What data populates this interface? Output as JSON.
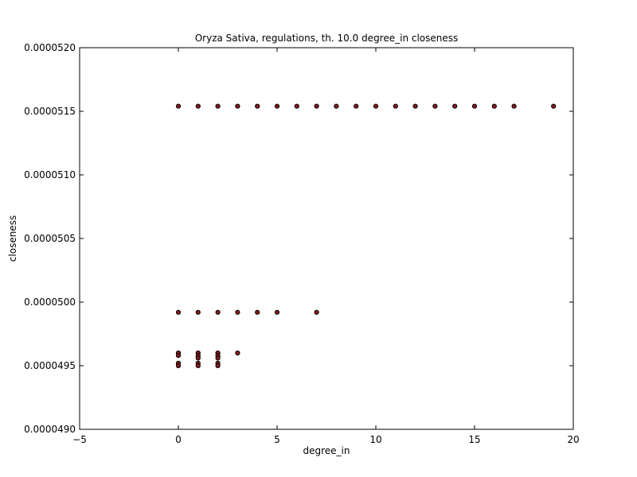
{
  "chart_data": {
    "type": "scatter",
    "title": "Oryza Sativa, regulations, th. 10.0 degree_in closeness",
    "xlabel": "degree_in",
    "ylabel": "closeness",
    "xlim": [
      -5,
      20
    ],
    "ylim": [
      4.9e-05,
      5.2e-05
    ],
    "xticks": [
      -5,
      0,
      5,
      10,
      15,
      20
    ],
    "xtick_labels": [
      "−5",
      "0",
      "5",
      "10",
      "15",
      "20"
    ],
    "yticks": [
      4.9e-05,
      4.95e-05,
      5e-05,
      5.05e-05,
      5.1e-05,
      5.15e-05,
      5.2e-05
    ],
    "ytick_labels": [
      "0.0000490",
      "0.0000495",
      "0.0000500",
      "0.0000505",
      "0.0000510",
      "0.0000515",
      "0.0000520"
    ],
    "grid": false,
    "legend": "none",
    "marker_fill": "#8b1a1a",
    "marker_edge": "#000000",
    "points": [
      {
        "x": 0,
        "y": 5.154e-05
      },
      {
        "x": 1,
        "y": 5.154e-05
      },
      {
        "x": 2,
        "y": 5.154e-05
      },
      {
        "x": 3,
        "y": 5.154e-05
      },
      {
        "x": 4,
        "y": 5.154e-05
      },
      {
        "x": 5,
        "y": 5.154e-05
      },
      {
        "x": 6,
        "y": 5.154e-05
      },
      {
        "x": 7,
        "y": 5.154e-05
      },
      {
        "x": 8,
        "y": 5.154e-05
      },
      {
        "x": 9,
        "y": 5.154e-05
      },
      {
        "x": 10,
        "y": 5.154e-05
      },
      {
        "x": 11,
        "y": 5.154e-05
      },
      {
        "x": 12,
        "y": 5.154e-05
      },
      {
        "x": 13,
        "y": 5.154e-05
      },
      {
        "x": 14,
        "y": 5.154e-05
      },
      {
        "x": 15,
        "y": 5.154e-05
      },
      {
        "x": 16,
        "y": 5.154e-05
      },
      {
        "x": 17,
        "y": 5.154e-05
      },
      {
        "x": 19,
        "y": 5.154e-05
      },
      {
        "x": 0,
        "y": 4.992e-05
      },
      {
        "x": 1,
        "y": 4.992e-05
      },
      {
        "x": 2,
        "y": 4.992e-05
      },
      {
        "x": 3,
        "y": 4.992e-05
      },
      {
        "x": 4,
        "y": 4.992e-05
      },
      {
        "x": 5,
        "y": 4.992e-05
      },
      {
        "x": 7,
        "y": 4.992e-05
      },
      {
        "x": 0,
        "y": 4.96e-05
      },
      {
        "x": 0,
        "y": 4.958e-05
      },
      {
        "x": 0,
        "y": 4.952e-05
      },
      {
        "x": 0,
        "y": 4.95e-05
      },
      {
        "x": 1,
        "y": 4.96e-05
      },
      {
        "x": 1,
        "y": 4.958e-05
      },
      {
        "x": 1,
        "y": 4.956e-05
      },
      {
        "x": 1,
        "y": 4.952e-05
      },
      {
        "x": 1,
        "y": 4.95e-05
      },
      {
        "x": 2,
        "y": 4.96e-05
      },
      {
        "x": 2,
        "y": 4.958e-05
      },
      {
        "x": 2,
        "y": 4.956e-05
      },
      {
        "x": 2,
        "y": 4.952e-05
      },
      {
        "x": 2,
        "y": 4.95e-05
      },
      {
        "x": 3,
        "y": 4.96e-05
      }
    ]
  }
}
